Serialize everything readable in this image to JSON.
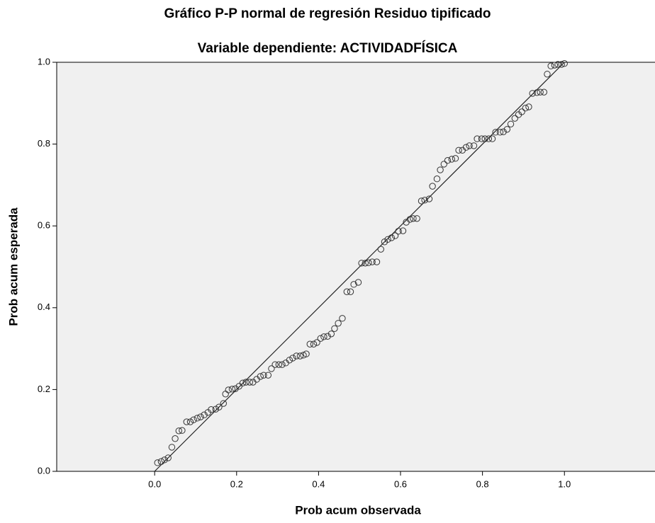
{
  "chart_data": {
    "type": "scatter",
    "title": "Gráfico P-P normal de regresión Residuo tipificado",
    "subtitle": "Variable dependiente: ACTIVIDADFÍSICA",
    "x_label": "Prob acum observada",
    "y_label": "Prob acum esperada",
    "xlim": [
      -0.239,
      1.221
    ],
    "ylim": [
      0,
      1
    ],
    "xticks": [
      {
        "value": 0,
        "label": "0.0"
      },
      0.2,
      0.4,
      0.6,
      0.8,
      {
        "value": 1,
        "label": "1.0"
      }
    ],
    "yticks": [
      {
        "value": 0,
        "label": "0.0"
      },
      0.2,
      0.4,
      0.6,
      0.8,
      {
        "value": 1,
        "label": "1.0"
      }
    ],
    "reference_line": true,
    "color": "#333333",
    "background": "#f0f0f0",
    "x": [
      0.007,
      0.016,
      0.024,
      0.033,
      0.042,
      0.05,
      0.059,
      0.067,
      0.078,
      0.087,
      0.095,
      0.104,
      0.112,
      0.121,
      0.13,
      0.138,
      0.149,
      0.157,
      0.168,
      0.173,
      0.18,
      0.189,
      0.197,
      0.206,
      0.215,
      0.223,
      0.232,
      0.24,
      0.249,
      0.258,
      0.266,
      0.277,
      0.285,
      0.294,
      0.303,
      0.311,
      0.32,
      0.329,
      0.337,
      0.346,
      0.355,
      0.363,
      0.37,
      0.379,
      0.388,
      0.396,
      0.405,
      0.413,
      0.422,
      0.431,
      0.439,
      0.448,
      0.458,
      0.469,
      0.478,
      0.486,
      0.497,
      0.505,
      0.514,
      0.522,
      0.531,
      0.542,
      0.552,
      0.561,
      0.569,
      0.578,
      0.587,
      0.595,
      0.606,
      0.614,
      0.623,
      0.631,
      0.64,
      0.651,
      0.659,
      0.67,
      0.678,
      0.689,
      0.697,
      0.706,
      0.715,
      0.725,
      0.734,
      0.742,
      0.751,
      0.76,
      0.768,
      0.779,
      0.787,
      0.798,
      0.806,
      0.815,
      0.824,
      0.832,
      0.843,
      0.851,
      0.86,
      0.869,
      0.879,
      0.888,
      0.896,
      0.905,
      0.913,
      0.922,
      0.933,
      0.941,
      0.95,
      0.958,
      0.967,
      0.976,
      0.984,
      0.993,
      1.0
    ],
    "values": [
      0.021,
      0.024,
      0.028,
      0.033,
      0.059,
      0.08,
      0.099,
      0.1,
      0.121,
      0.121,
      0.126,
      0.13,
      0.133,
      0.138,
      0.144,
      0.151,
      0.152,
      0.157,
      0.166,
      0.189,
      0.199,
      0.201,
      0.202,
      0.208,
      0.216,
      0.218,
      0.218,
      0.218,
      0.225,
      0.232,
      0.235,
      0.235,
      0.251,
      0.261,
      0.261,
      0.261,
      0.265,
      0.272,
      0.277,
      0.282,
      0.282,
      0.284,
      0.287,
      0.311,
      0.311,
      0.315,
      0.325,
      0.329,
      0.33,
      0.336,
      0.349,
      0.362,
      0.374,
      0.439,
      0.439,
      0.457,
      0.462,
      0.509,
      0.509,
      0.51,
      0.512,
      0.512,
      0.543,
      0.561,
      0.567,
      0.571,
      0.576,
      0.587,
      0.588,
      0.609,
      0.616,
      0.618,
      0.618,
      0.661,
      0.663,
      0.666,
      0.697,
      0.715,
      0.737,
      0.751,
      0.76,
      0.763,
      0.765,
      0.785,
      0.785,
      0.792,
      0.796,
      0.796,
      0.813,
      0.813,
      0.813,
      0.813,
      0.813,
      0.829,
      0.829,
      0.83,
      0.836,
      0.849,
      0.863,
      0.872,
      0.879,
      0.888,
      0.891,
      0.924,
      0.926,
      0.927,
      0.927,
      0.971,
      0.991,
      0.993,
      0.995,
      0.995,
      0.997
    ]
  }
}
